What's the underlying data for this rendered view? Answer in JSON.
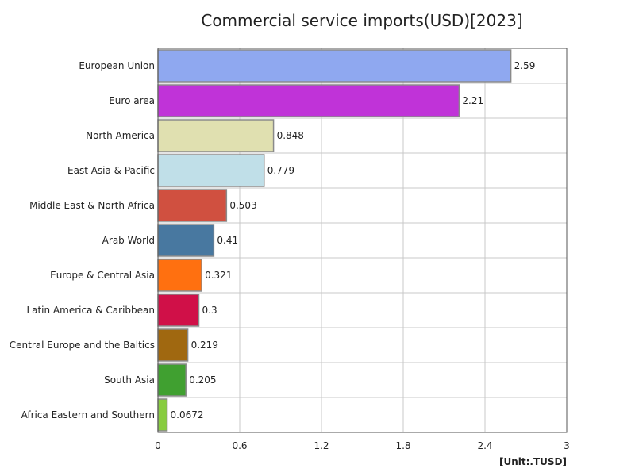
{
  "chart_data": {
    "type": "bar",
    "orientation": "horizontal",
    "title": "Commercial service imports(USD)[2023]",
    "unit_label": "[Unit:.TUSD]",
    "categories": [
      "European Union",
      "Euro area",
      "North America",
      "East Asia & Pacific",
      "Middle East & North Africa",
      "Arab World",
      "Europe & Central Asia",
      "Latin America & Caribbean",
      "Central Europe and the Baltics",
      "South Asia",
      "Africa Eastern and Southern"
    ],
    "values": [
      2.59,
      2.21,
      0.848,
      0.779,
      0.503,
      0.41,
      0.321,
      0.3,
      0.219,
      0.205,
      0.0672
    ],
    "value_labels": [
      "2.59",
      "2.21",
      "0.848",
      "0.779",
      "0.503",
      "0.41",
      "0.321",
      "0.3",
      "0.219",
      "0.205",
      "0.0672"
    ],
    "colors": [
      "#8fa8f0",
      "#c033d8",
      "#e0e0b0",
      "#c0dfe8",
      "#d05040",
      "#4878a0",
      "#ff7010",
      "#d01048",
      "#a06810",
      "#40a030",
      "#88cc40"
    ],
    "xlim": [
      0,
      3
    ],
    "xticks": [
      0,
      0.6,
      1.2,
      1.8,
      2.4,
      3
    ],
    "xtick_labels": [
      "0",
      "0.6",
      "1.2",
      "1.8",
      "2.4",
      "3"
    ],
    "grid": true
  }
}
